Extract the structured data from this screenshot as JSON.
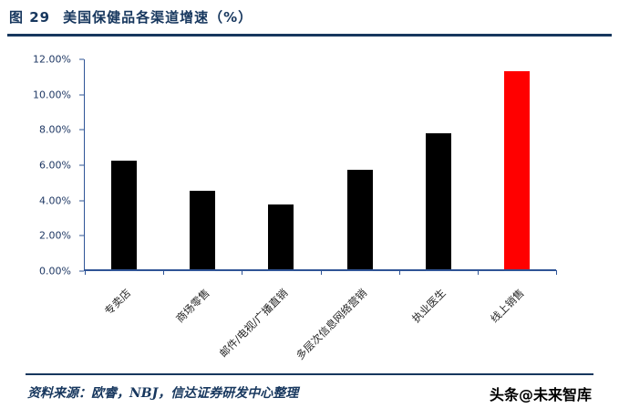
{
  "header": {
    "figure_no": "图 29",
    "title": "美国保健品各渠道增速（%）"
  },
  "chart_data": {
    "type": "bar",
    "title": "美国保健品各渠道增速（%）",
    "categories": [
      "专卖店",
      "商场零售",
      "邮件/电视/广播直销",
      "多层次信息网络营销",
      "执业医生",
      "线上销售"
    ],
    "values": [
      6.2,
      4.5,
      3.7,
      5.7,
      7.8,
      11.3
    ],
    "bar_colors": [
      "#000000",
      "#000000",
      "#000000",
      "#000000",
      "#000000",
      "#FF0000"
    ],
    "xlabel": "",
    "ylabel": "",
    "ylim": [
      0,
      12
    ],
    "ytick_step": 2,
    "ytick_labels": [
      "0.00%",
      "2.00%",
      "4.00%",
      "6.00%",
      "8.00%",
      "10.00%",
      "12.00%"
    ],
    "grid": false,
    "legend": "none"
  },
  "footer": {
    "source_prefix": "资料来源：欧睿，",
    "source_nbj": "NBJ",
    "source_suffix": "，信达证券研发中心整理",
    "watermark": "头条@未来智库"
  },
  "colors": {
    "accent_navy": "#17375E",
    "axis_blue": "#2F5496",
    "bar_default": "#000000",
    "bar_highlight": "#FF0000"
  }
}
